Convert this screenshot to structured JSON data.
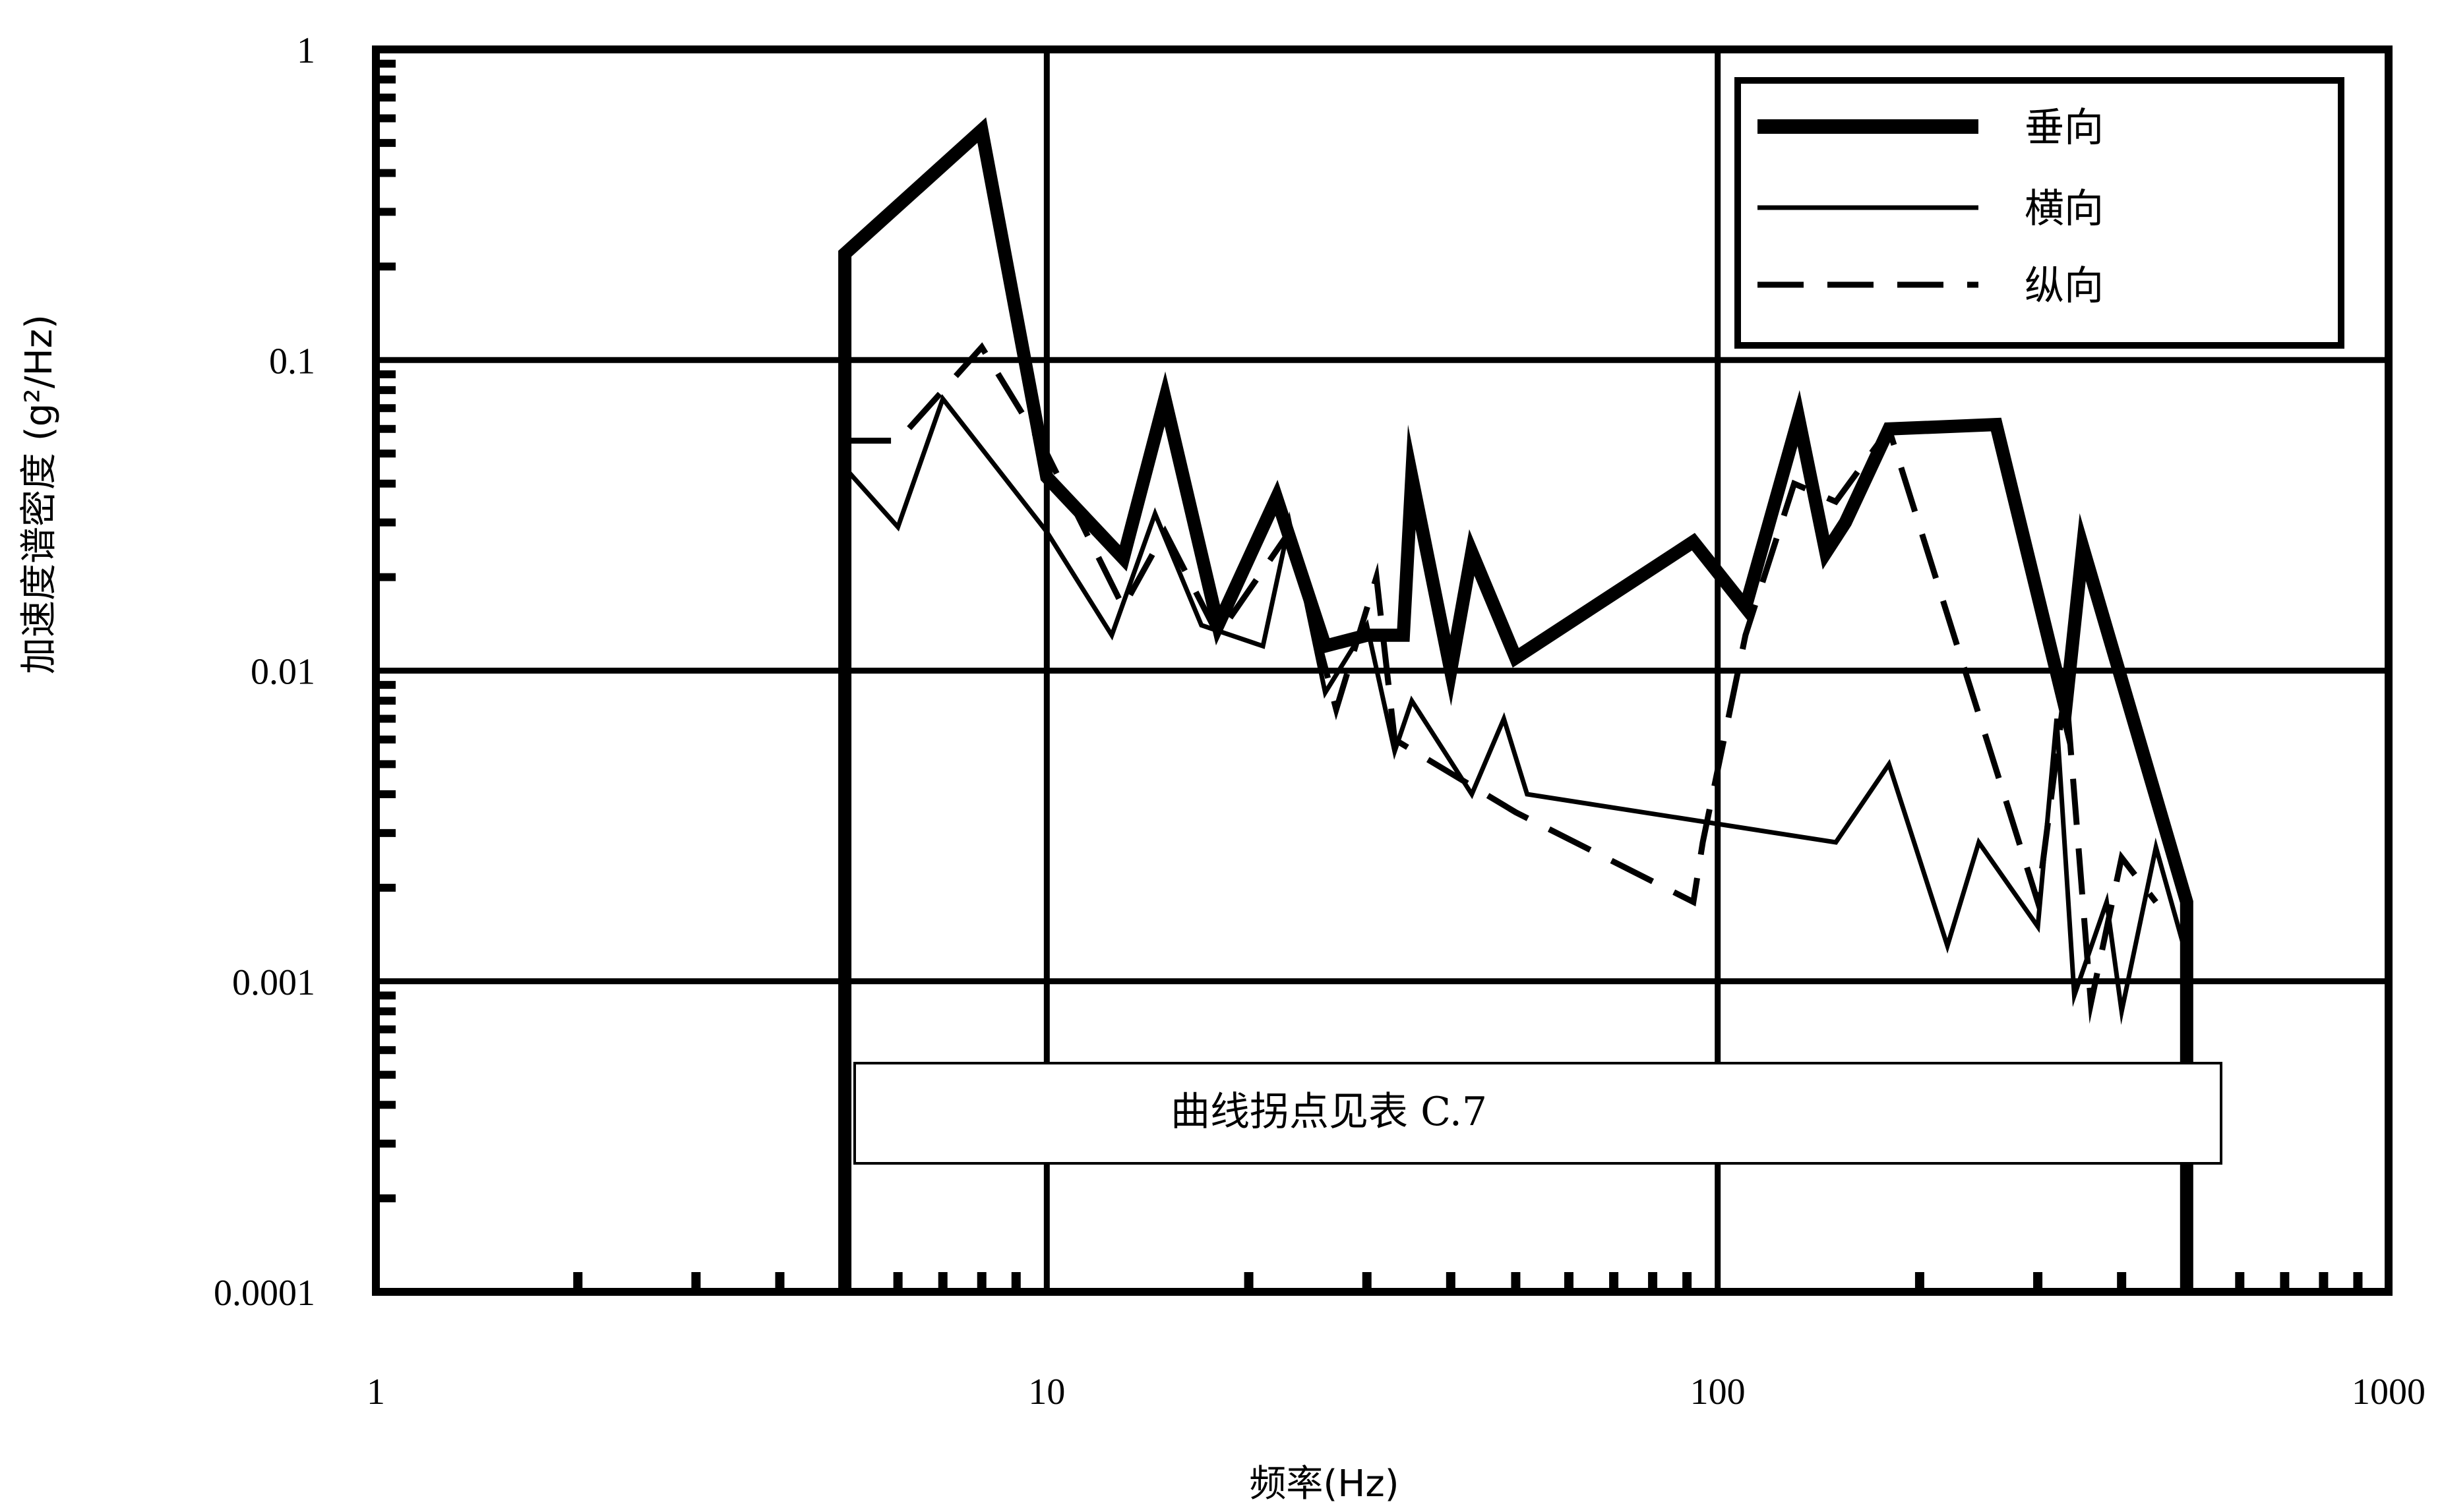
{
  "chart_data": {
    "type": "line",
    "xlabel": "频率(Hz)",
    "ylabel": "加速度谱密度 (g²/Hz)",
    "x_scale": "log",
    "y_scale": "log",
    "xlim": [
      1,
      1000
    ],
    "ylim": [
      0.0001,
      1
    ],
    "x_ticks": [
      {
        "value": 1,
        "label": "1"
      },
      {
        "value": 10,
        "label": "10"
      },
      {
        "value": 100,
        "label": "100"
      },
      {
        "value": 1000,
        "label": "1000"
      }
    ],
    "y_ticks": [
      {
        "value": 1,
        "label": "1"
      },
      {
        "value": 0.1,
        "label": "0.1"
      },
      {
        "value": 0.01,
        "label": "0.01"
      },
      {
        "value": 0.001,
        "label": "0.001"
      },
      {
        "value": 0.0001,
        "label": "0.0001"
      }
    ],
    "grid": true,
    "legend_position": "top-right",
    "annotation": "曲线拐点见表 C.7",
    "series": [
      {
        "name": "垂向",
        "style": "thick-solid",
        "color": "#000000",
        "points": [
          [
            5,
            0.0001
          ],
          [
            5,
            0.22
          ],
          [
            8,
            0.55
          ],
          [
            10,
            0.042
          ],
          [
            13,
            0.023
          ],
          [
            15,
            0.075
          ],
          [
            18,
            0.014
          ],
          [
            22,
            0.036
          ],
          [
            26,
            0.012
          ],
          [
            30,
            0.013
          ],
          [
            34,
            0.013
          ],
          [
            35,
            0.042
          ],
          [
            40,
            0.01
          ],
          [
            43,
            0.024
          ],
          [
            50,
            0.011
          ],
          [
            92,
            0.026
          ],
          [
            110,
            0.016
          ],
          [
            132,
            0.065
          ],
          [
            145,
            0.024
          ],
          [
            155,
            0.03
          ],
          [
            180,
            0.06
          ],
          [
            260,
            0.062
          ],
          [
            330,
            0.0075
          ],
          [
            350,
            0.025
          ],
          [
            500,
            0.0018
          ],
          [
            500,
            0.0001
          ]
        ]
      },
      {
        "name": "横向",
        "style": "thin-solid",
        "color": "#000000",
        "points": [
          [
            5,
            0.045
          ],
          [
            6,
            0.029
          ],
          [
            7,
            0.075
          ],
          [
            10,
            0.028
          ],
          [
            12.5,
            0.013
          ],
          [
            14.5,
            0.032
          ],
          [
            17,
            0.014
          ],
          [
            21,
            0.012
          ],
          [
            23,
            0.03
          ],
          [
            26,
            0.0085
          ],
          [
            30,
            0.014
          ],
          [
            33,
            0.0055
          ],
          [
            35,
            0.008
          ],
          [
            43,
            0.004
          ],
          [
            48,
            0.007
          ],
          [
            52,
            0.004
          ],
          [
            150,
            0.0028
          ],
          [
            180,
            0.005
          ],
          [
            220,
            0.0013
          ],
          [
            245,
            0.0028
          ],
          [
            300,
            0.0015
          ],
          [
            320,
            0.007
          ],
          [
            340,
            0.0009
          ],
          [
            380,
            0.0018
          ],
          [
            400,
            0.0008
          ],
          [
            450,
            0.0027
          ],
          [
            500,
            0.0012
          ]
        ]
      },
      {
        "name": "纵向",
        "style": "dashed",
        "color": "#000000",
        "points": [
          [
            5,
            0.055
          ],
          [
            6,
            0.055
          ],
          [
            8,
            0.11
          ],
          [
            10,
            0.05
          ],
          [
            13,
            0.016
          ],
          [
            15,
            0.028
          ],
          [
            18,
            0.013
          ],
          [
            23,
            0.028
          ],
          [
            27,
            0.0075
          ],
          [
            31,
            0.02
          ],
          [
            33,
            0.006
          ],
          [
            50,
            0.0035
          ],
          [
            92,
            0.0018
          ],
          [
            95,
            0.0028
          ],
          [
            110,
            0.013
          ],
          [
            130,
            0.04
          ],
          [
            150,
            0.035
          ],
          [
            180,
            0.06
          ],
          [
            300,
            0.0018
          ],
          [
            330,
            0.009
          ],
          [
            360,
            0.00085
          ],
          [
            400,
            0.0025
          ],
          [
            450,
            0.0018
          ]
        ]
      }
    ]
  }
}
